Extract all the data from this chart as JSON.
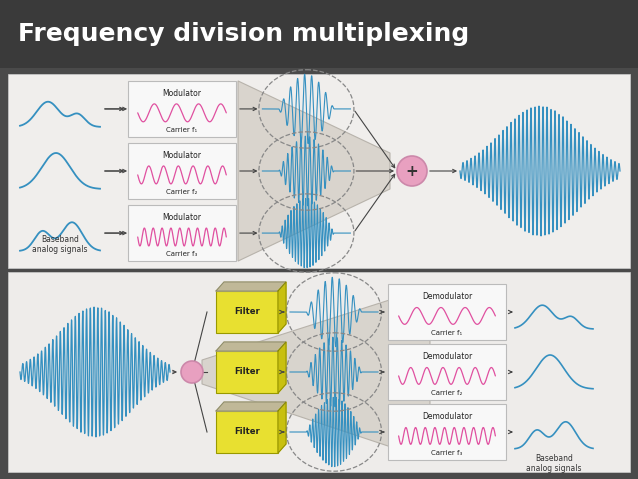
{
  "title": "Frequency division multiplexing",
  "title_fontsize": 18,
  "title_color": "#ffffff",
  "bg_color": "#4a4a4a",
  "panel_bg_top": "#f0eeec",
  "panel_bg_bot": "#eeecea",
  "modulator_labels": [
    "Modulator",
    "Modulator",
    "Modulator"
  ],
  "carrier_labels": [
    "Carrier f₁",
    "Carrier f₂",
    "Carrier f₃"
  ],
  "demodulator_labels": [
    "Demodulator",
    "Demodulator",
    "Demodulator"
  ],
  "filter_label": "Filter",
  "baseband_label": "Baseband\nanalog signals",
  "wave_pink": "#e050a0",
  "wave_blue": "#3590c0",
  "wave_teal": "#2878b0",
  "box_bg": "#f8f8f8",
  "filter_yellow": "#e8e030",
  "filter_yellow2": "#b8b010",
  "filter_gray_top": "#c0b898",
  "circle_pink": "#e8a0c0",
  "arrow_col": "#444444",
  "trap_fill": "#d5d0c8",
  "trap_edge": "#b0aba3"
}
